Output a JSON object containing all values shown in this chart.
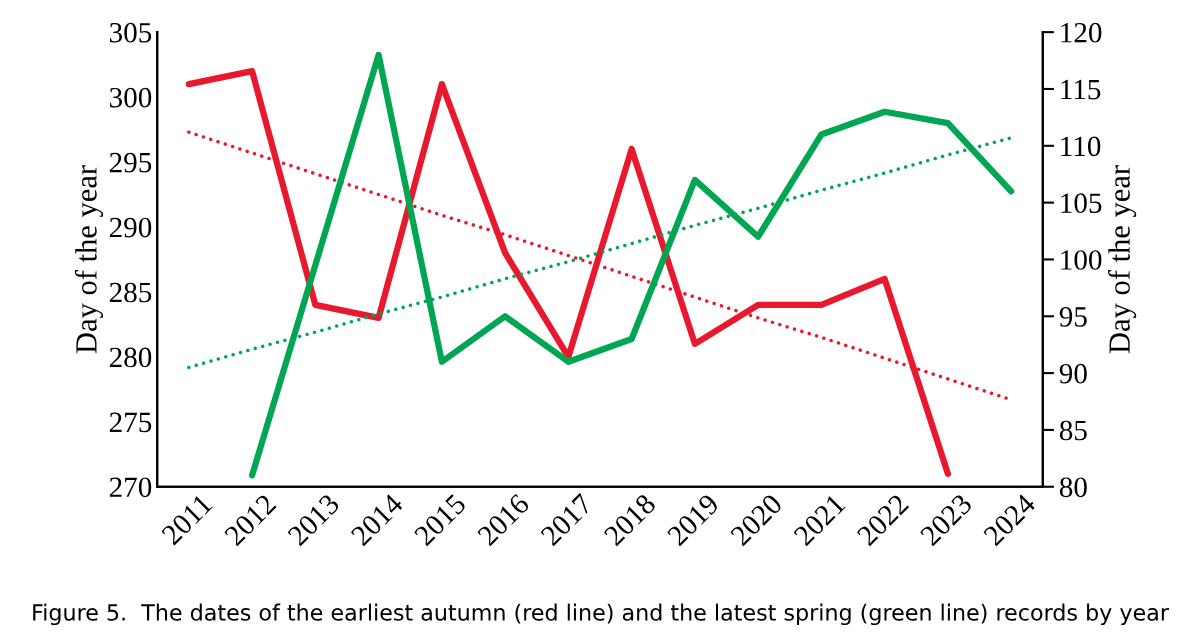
{
  "chart_data": {
    "type": "line",
    "ylabel": "Day of the year",
    "y2label": "Day of the year",
    "categories": [
      "2011",
      "2012",
      "2013",
      "2014",
      "2015",
      "2016",
      "2017",
      "2018",
      "2019",
      "2020",
      "2021",
      "2022",
      "2023",
      "2024"
    ],
    "series": [
      {
        "color": "#e8192c",
        "values": [
          301,
          302,
          284,
          283,
          301,
          288,
          280,
          296,
          281,
          284,
          284,
          286,
          271,
          null
        ]
      },
      {
        "color": "#00a651",
        "axis": "y2",
        "values": [
          null,
          81,
          99.5,
          118,
          91,
          95,
          91,
          93,
          107,
          102,
          111,
          113,
          112,
          106
        ]
      },
      {
        "type": "line",
        "color": "#e8192c",
        "line_style": "dotted",
        "values": [
          297.3,
          295.7,
          294.1,
          292.5,
          290.9,
          289.4,
          287.8,
          286.2,
          284.6,
          283.0,
          281.5,
          279.9,
          278.3,
          276.7
        ]
      },
      {
        "type": "line",
        "color": "#00a651",
        "line_style": "dotted",
        "axis": "y2",
        "values": [
          90.5,
          92.1,
          93.6,
          95.2,
          96.7,
          98.3,
          99.8,
          101.4,
          103.0,
          104.5,
          106.1,
          107.6,
          109.2,
          110.7
        ]
      }
    ],
    "ylim": [
      270,
      305
    ],
    "yticks": [
      270,
      275,
      280,
      285,
      290,
      295,
      300,
      305
    ],
    "y2lim": [
      80,
      120
    ],
    "y2ticks": [
      80,
      85,
      90,
      95,
      100,
      105,
      110,
      115,
      120
    ],
    "grid": false,
    "legend": false,
    "line_style": "solid",
    "marker": "none",
    "annotations": [
      "Figure 5.  The dates of the earliest autumn (red line) and the latest spring (green line) records by year"
    ]
  }
}
